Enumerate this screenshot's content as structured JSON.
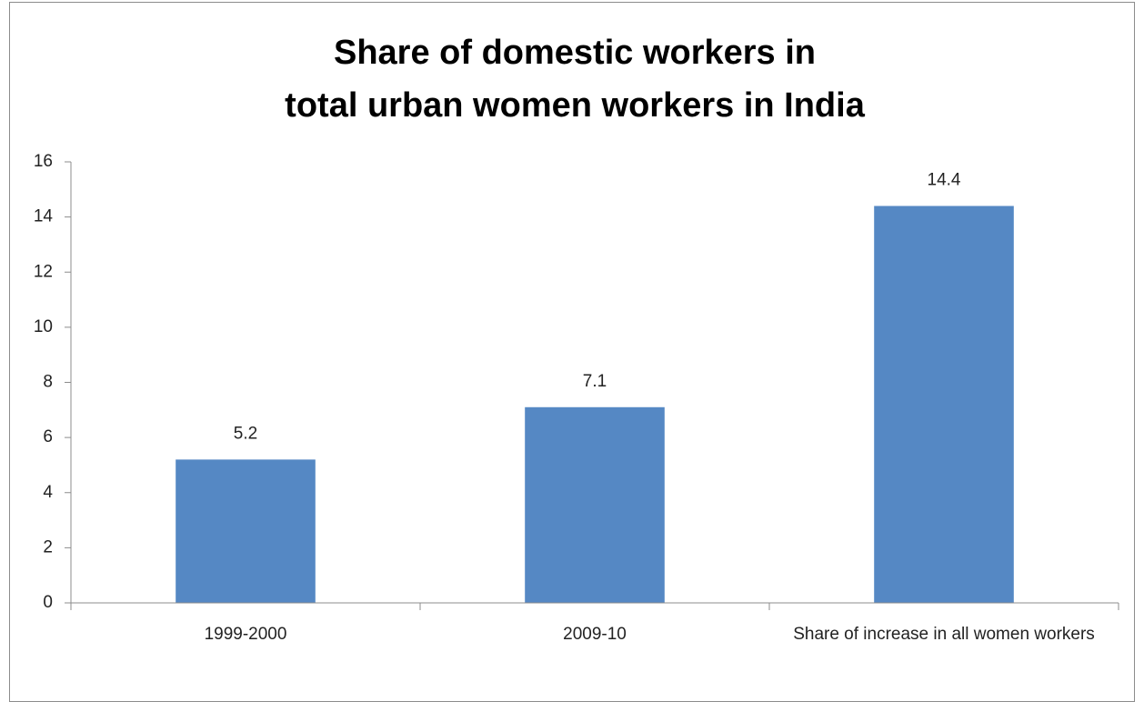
{
  "chart_data": {
    "type": "bar",
    "title": [
      "Share of domestic workers in",
      "total urban women workers in India"
    ],
    "categories": [
      "1999-2000",
      "2009-10",
      "Share of increase in all women workers"
    ],
    "values": [
      5.2,
      7.1,
      14.4
    ],
    "color": "#5588c4",
    "ylim": [
      0,
      16
    ],
    "yticks": [
      0,
      2,
      4,
      6,
      8,
      10,
      12,
      14,
      16
    ],
    "grid": false,
    "data_labels": true
  }
}
